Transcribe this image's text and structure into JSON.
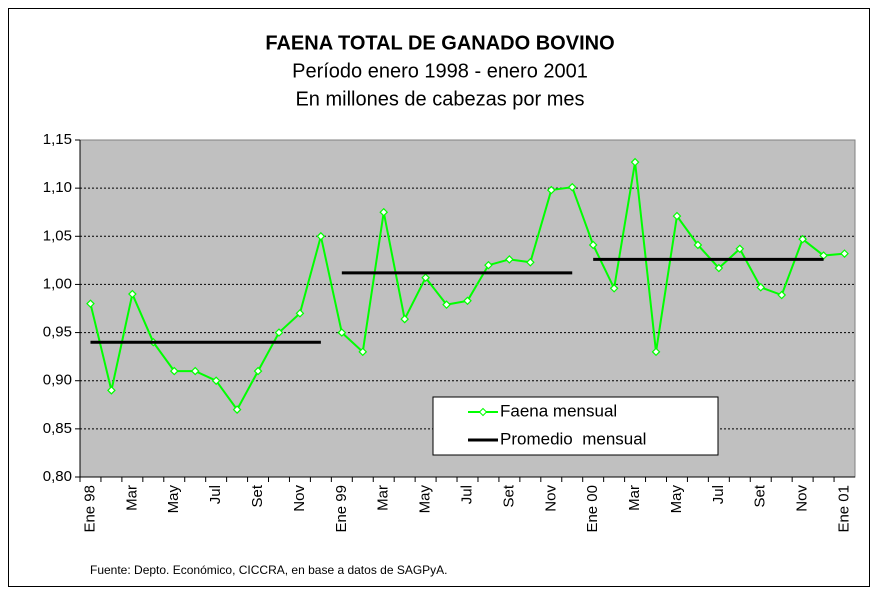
{
  "chart_data": {
    "type": "line",
    "title": "FAENA TOTAL DE GANADO BOVINO",
    "subtitle": [
      "Período enero 1998 - enero 2001",
      "En millones de cabezas por mes"
    ],
    "source": "Fuente: Depto. Económico, CICCRA, en base a datos de SAGPyA.",
    "categories": [
      "Ene 98",
      null,
      "Mar",
      null,
      "May",
      null,
      "Jul",
      null,
      "Set",
      null,
      "Nov",
      null,
      "Ene 99",
      null,
      "Mar",
      null,
      "May",
      null,
      "Jul",
      null,
      "Set",
      null,
      "Nov",
      null,
      "Ene 00",
      null,
      "Mar",
      null,
      "May",
      null,
      "Jul",
      null,
      "Set",
      null,
      "Nov",
      null,
      "Ene 01"
    ],
    "series": [
      {
        "name": "Faena mensual",
        "color": "#00ff00",
        "style": "line-marker",
        "values": [
          0.98,
          0.89,
          0.99,
          0.94,
          0.91,
          0.91,
          0.9,
          0.87,
          0.91,
          0.95,
          0.97,
          1.05,
          0.95,
          0.93,
          1.075,
          0.964,
          1.007,
          0.979,
          0.983,
          1.02,
          1.026,
          1.023,
          1.098,
          1.101,
          1.041,
          0.996,
          1.127,
          0.93,
          1.071,
          1.041,
          1.017,
          1.037,
          0.997,
          0.989,
          1.047,
          1.03,
          1.032
        ]
      },
      {
        "name": "Promedio  mensual",
        "color": "#000000",
        "style": "step-average",
        "values": [
          0.94,
          0.94,
          0.94,
          0.94,
          0.94,
          0.94,
          0.94,
          0.94,
          0.94,
          0.94,
          0.94,
          0.94,
          1.012,
          1.012,
          1.012,
          1.012,
          1.012,
          1.012,
          1.012,
          1.012,
          1.012,
          1.012,
          1.012,
          1.012,
          1.026,
          1.026,
          1.026,
          1.026,
          1.026,
          1.026,
          1.026,
          1.026,
          1.026,
          1.026,
          1.026,
          1.026,
          null
        ]
      }
    ],
    "ylim": [
      0.8,
      1.15
    ],
    "yticks": [
      {
        "value": 0.8,
        "label": "0,80"
      },
      {
        "value": 0.85,
        "label": "0,85"
      },
      {
        "value": 0.9,
        "label": "0,90"
      },
      {
        "value": 0.95,
        "label": "0,95"
      },
      {
        "value": 1.0,
        "label": "1,00"
      },
      {
        "value": 1.05,
        "label": "1,05"
      },
      {
        "value": 1.1,
        "label": "1,10"
      },
      {
        "value": 1.15,
        "label": "1,15"
      }
    ],
    "grid": true,
    "plot_background": "#c0c0c0",
    "legend": "lower right"
  }
}
